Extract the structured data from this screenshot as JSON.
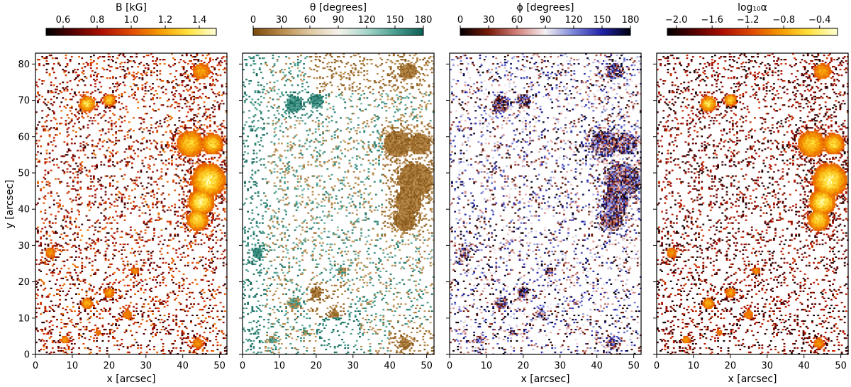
{
  "chart_data": [
    {
      "type": "heatmap",
      "panel": "field-strength",
      "colorbar": {
        "label": "B [kG]",
        "ticks": [
          "0.6",
          "0.8",
          "1.0",
          "1.2",
          "1.4"
        ],
        "range": [
          0.5,
          1.5
        ],
        "colormap": [
          "#000000",
          "#5a0000",
          "#b01000",
          "#e04a00",
          "#f59a00",
          "#ffe23a",
          "#ffffd8"
        ]
      },
      "xlabel": "x [arcsec]",
      "ylabel": "y [arcsec]",
      "xticks": [
        "0",
        "10",
        "20",
        "30",
        "40",
        "50"
      ],
      "yticks": [
        "0",
        "10",
        "20",
        "30",
        "40",
        "50",
        "60",
        "70",
        "80"
      ],
      "xlim": [
        0,
        52
      ],
      "ylim": [
        0,
        83
      ]
    },
    {
      "type": "heatmap",
      "panel": "inclination",
      "colorbar": {
        "label": "θ [degrees]",
        "ticks": [
          "0",
          "30",
          "60",
          "90",
          "120",
          "150",
          "180"
        ],
        "range": [
          0,
          180
        ],
        "colormap": [
          "#7a4a0c",
          "#b88a4a",
          "#dec8a0",
          "#f5f2ea",
          "#a8d6cc",
          "#4a9e90",
          "#0b5e52"
        ]
      },
      "xlabel": "",
      "ylabel": "",
      "xticks": [
        "0",
        "10",
        "20",
        "30",
        "40",
        "50"
      ],
      "yticks": [],
      "xlim": [
        0,
        52
      ],
      "ylim": [
        0,
        83
      ]
    },
    {
      "type": "heatmap",
      "panel": "azimuth",
      "colorbar": {
        "label": "ϕ [degrees]",
        "ticks": [
          "0",
          "30",
          "60",
          "90",
          "120",
          "150",
          "180"
        ],
        "range": [
          0,
          180
        ],
        "colormap": [
          "#000000",
          "#7a1a0a",
          "#d2807a",
          "#f5f0f2",
          "#7a84d8",
          "#2020a8",
          "#000010"
        ]
      },
      "xlabel": "x [arcsec]",
      "ylabel": "",
      "xticks": [
        "0",
        "10",
        "20",
        "30",
        "40",
        "50"
      ],
      "yticks": [],
      "xlim": [
        0,
        52
      ],
      "ylim": [
        0,
        83
      ]
    },
    {
      "type": "heatmap",
      "panel": "filling-factor",
      "colorbar": {
        "label": "log₁₀α",
        "ticks": [
          "−2.0",
          "−1.6",
          "−1.2",
          "−0.8",
          "−0.4"
        ],
        "range": [
          -2.1,
          -0.2
        ],
        "colormap": [
          "#000000",
          "#5a0000",
          "#b01000",
          "#e04a00",
          "#f59a00",
          "#ffe23a",
          "#ffffd8"
        ]
      },
      "xlabel": "x [arcsec]",
      "ylabel": "",
      "xticks": [
        "0",
        "10",
        "20",
        "30",
        "40",
        "50"
      ],
      "yticks": [],
      "xlim": [
        0,
        52
      ],
      "ylim": [
        0,
        83
      ]
    }
  ]
}
